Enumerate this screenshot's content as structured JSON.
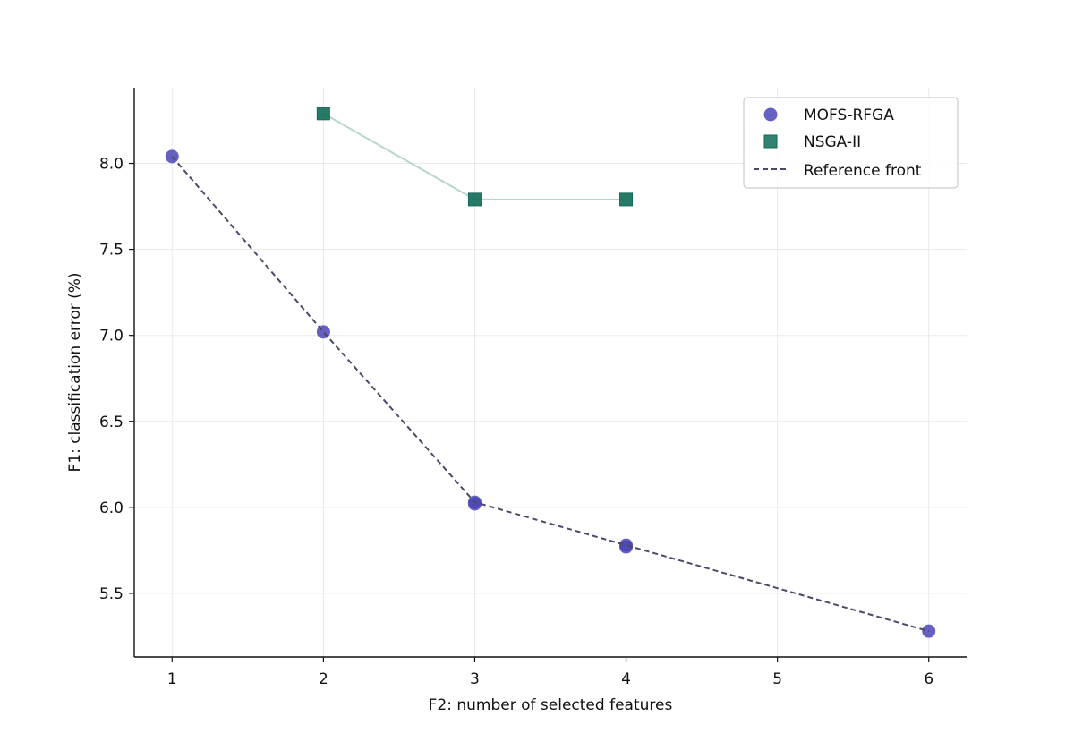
{
  "chart_data": {
    "type": "scatter",
    "title": "",
    "xlabel": "F2: number of selected features",
    "ylabel": "F1: classification error (%)",
    "xlim": [
      0.75,
      6.25
    ],
    "ylim": [
      5.13,
      8.44
    ],
    "xticks": [
      1,
      2,
      3,
      4,
      5,
      6
    ],
    "xtick_labels": [
      "1",
      "2",
      "3",
      "4",
      "5",
      "6"
    ],
    "yticks": [
      5.5,
      6.0,
      6.5,
      7.0,
      7.5,
      8.0
    ],
    "ytick_labels": [
      "5.5",
      "6.0",
      "6.5",
      "7.0",
      "7.5",
      "8.0"
    ],
    "grid": true,
    "legend_position": "top-right",
    "series": [
      {
        "name": "MOFS-RFGA",
        "kind": "scatter",
        "marker": "circle",
        "color": "#4b45b5",
        "x": [
          1,
          2,
          3,
          3,
          4,
          4,
          6
        ],
        "y": [
          8.04,
          7.02,
          6.03,
          6.02,
          5.78,
          5.77,
          5.28
        ]
      },
      {
        "name": "NSGA-II",
        "kind": "scatter+line",
        "marker": "square",
        "color": "#0f6b57",
        "line_color": "#b7d6cd",
        "x": [
          2,
          3,
          4
        ],
        "y": [
          8.29,
          7.79,
          7.79
        ]
      },
      {
        "name": "Reference front",
        "kind": "line",
        "style": "dashed",
        "color": "#4a4a68",
        "x": [
          1,
          2,
          3,
          4,
          6
        ],
        "y": [
          8.04,
          7.02,
          6.03,
          5.78,
          5.28
        ]
      }
    ]
  }
}
